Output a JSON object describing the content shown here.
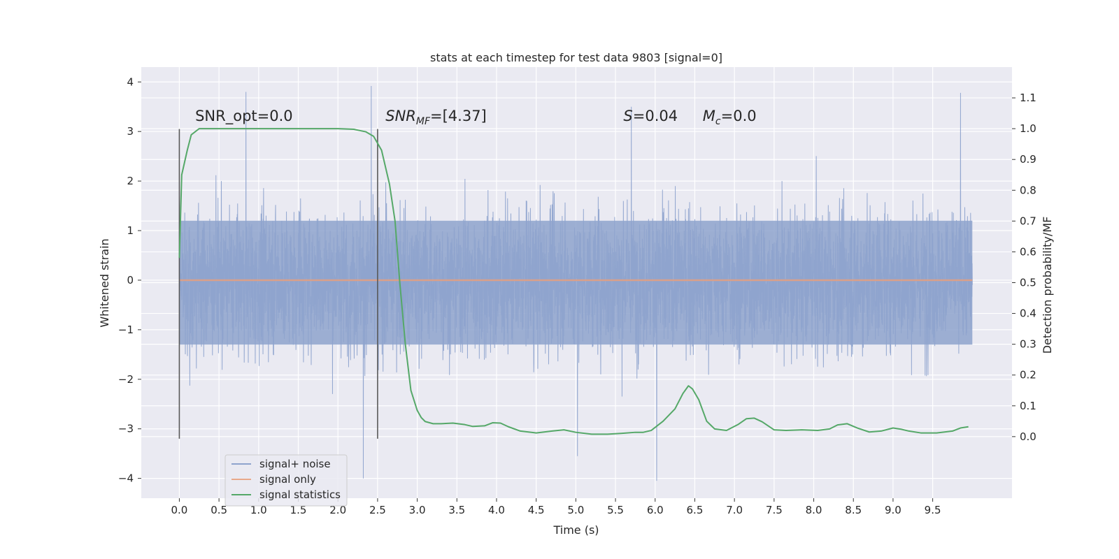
{
  "chart_data": {
    "type": "line",
    "title": "stats at each timestep for test data 9803 [signal=0]",
    "xlabel": "Time (s)",
    "ylabel": "Whitened strain",
    "y2label": "Detection probability/MF",
    "xlim": [
      -0.48,
      10.5
    ],
    "ylim": [
      -4.4,
      4.3
    ],
    "y2lim": [
      -0.2,
      1.2
    ],
    "x_ticks": [
      "0.0",
      "0.5",
      "1.0",
      "1.5",
      "2.0",
      "2.5",
      "3.0",
      "3.5",
      "4.0",
      "4.5",
      "5.0",
      "5.5",
      "6.0",
      "6.5",
      "7.0",
      "7.5",
      "8.0",
      "8.5",
      "9.0",
      "9.5"
    ],
    "y_ticks": [
      "4",
      "3",
      "2",
      "1",
      "0",
      "−1",
      "−2",
      "−3",
      "−4"
    ],
    "y2_ticks": [
      "1.1",
      "1.0",
      "0.9",
      "0.8",
      "0.7",
      "0.6",
      "0.5",
      "0.4",
      "0.3",
      "0.2",
      "0.1",
      "0.0"
    ],
    "grid": true,
    "legend_position": "lower-left",
    "colors": {
      "noise": "#8ea3cd",
      "signal_only": "#dd8452",
      "statistics": "#55a868",
      "window_markers": "#595959",
      "axes_bg": "#eaeaf2",
      "grid": "#ffffff"
    },
    "series": [
      {
        "name": "signal+ noise",
        "description_stats": {
          "x_range": [
            0.0,
            10.0
          ],
          "typical_amplitude": [
            -1.3,
            1.2
          ],
          "peaks_max": 3.9,
          "peaks_min": -4.05,
          "notable_peaks": [
            [
              0.84,
              3.8
            ],
            [
              2.42,
              3.92
            ],
            [
              5.7,
              3.5
            ],
            [
              9.85,
              3.78
            ],
            [
              2.32,
              -4.0
            ],
            [
              6.02,
              -4.05
            ],
            [
              5.02,
              -3.55
            ]
          ]
        }
      },
      {
        "name": "signal only",
        "x": [
          0.0,
          10.0
        ],
        "y": [
          0.0,
          0.0
        ]
      },
      {
        "name": "signal statistics",
        "axis": "right",
        "x": [
          0.0,
          0.03,
          0.1,
          0.15,
          0.25,
          0.4,
          0.6,
          1.0,
          1.5,
          2.0,
          2.2,
          2.35,
          2.45,
          2.55,
          2.65,
          2.72,
          2.78,
          2.85,
          2.92,
          3.0,
          3.05,
          3.1,
          3.2,
          3.3,
          3.45,
          3.6,
          3.7,
          3.85,
          3.95,
          4.05,
          4.15,
          4.3,
          4.5,
          4.7,
          4.85,
          5.0,
          5.2,
          5.4,
          5.6,
          5.75,
          5.85,
          5.95,
          6.1,
          6.25,
          6.35,
          6.42,
          6.47,
          6.55,
          6.65,
          6.75,
          6.9,
          7.05,
          7.15,
          7.25,
          7.35,
          7.5,
          7.65,
          7.85,
          8.05,
          8.2,
          8.3,
          8.42,
          8.55,
          8.7,
          8.85,
          9.0,
          9.1,
          9.2,
          9.35,
          9.55,
          9.75,
          9.85,
          9.95
        ],
        "y": [
          0.58,
          0.85,
          0.93,
          0.98,
          1.0,
          1.0,
          1.0,
          1.0,
          1.0,
          1.0,
          0.998,
          0.99,
          0.975,
          0.93,
          0.82,
          0.7,
          0.5,
          0.3,
          0.15,
          0.085,
          0.062,
          0.049,
          0.042,
          0.042,
          0.044,
          0.039,
          0.033,
          0.035,
          0.045,
          0.044,
          0.032,
          0.018,
          0.012,
          0.018,
          0.022,
          0.014,
          0.008,
          0.008,
          0.011,
          0.014,
          0.014,
          0.02,
          0.05,
          0.09,
          0.14,
          0.165,
          0.155,
          0.12,
          0.05,
          0.025,
          0.02,
          0.04,
          0.058,
          0.06,
          0.048,
          0.022,
          0.02,
          0.022,
          0.02,
          0.025,
          0.038,
          0.042,
          0.028,
          0.015,
          0.018,
          0.028,
          0.024,
          0.018,
          0.012,
          0.012,
          0.018,
          0.028,
          0.032
        ]
      }
    ],
    "vertical_markers": [
      {
        "x": 0.0,
        "y_range": [
          -3.2,
          3.05
        ]
      },
      {
        "x": 2.5,
        "y_range": [
          -3.2,
          3.05
        ]
      }
    ],
    "annotations": [
      {
        "text": "SNR_opt=0.0",
        "x": 0.2,
        "y": 3.1
      },
      {
        "main": "SNR",
        "sub": "MF",
        "rest": "=[4.37]",
        "x": 2.6,
        "y": 3.1
      },
      {
        "main": "S",
        "rest": "=0.04",
        "x": 5.6,
        "y": 3.1
      },
      {
        "main": "M",
        "sub": "c",
        "rest": "=0.0",
        "x": 6.6,
        "y": 3.1
      }
    ],
    "legend": [
      "signal+ noise",
      "signal only",
      "signal statistics"
    ]
  }
}
